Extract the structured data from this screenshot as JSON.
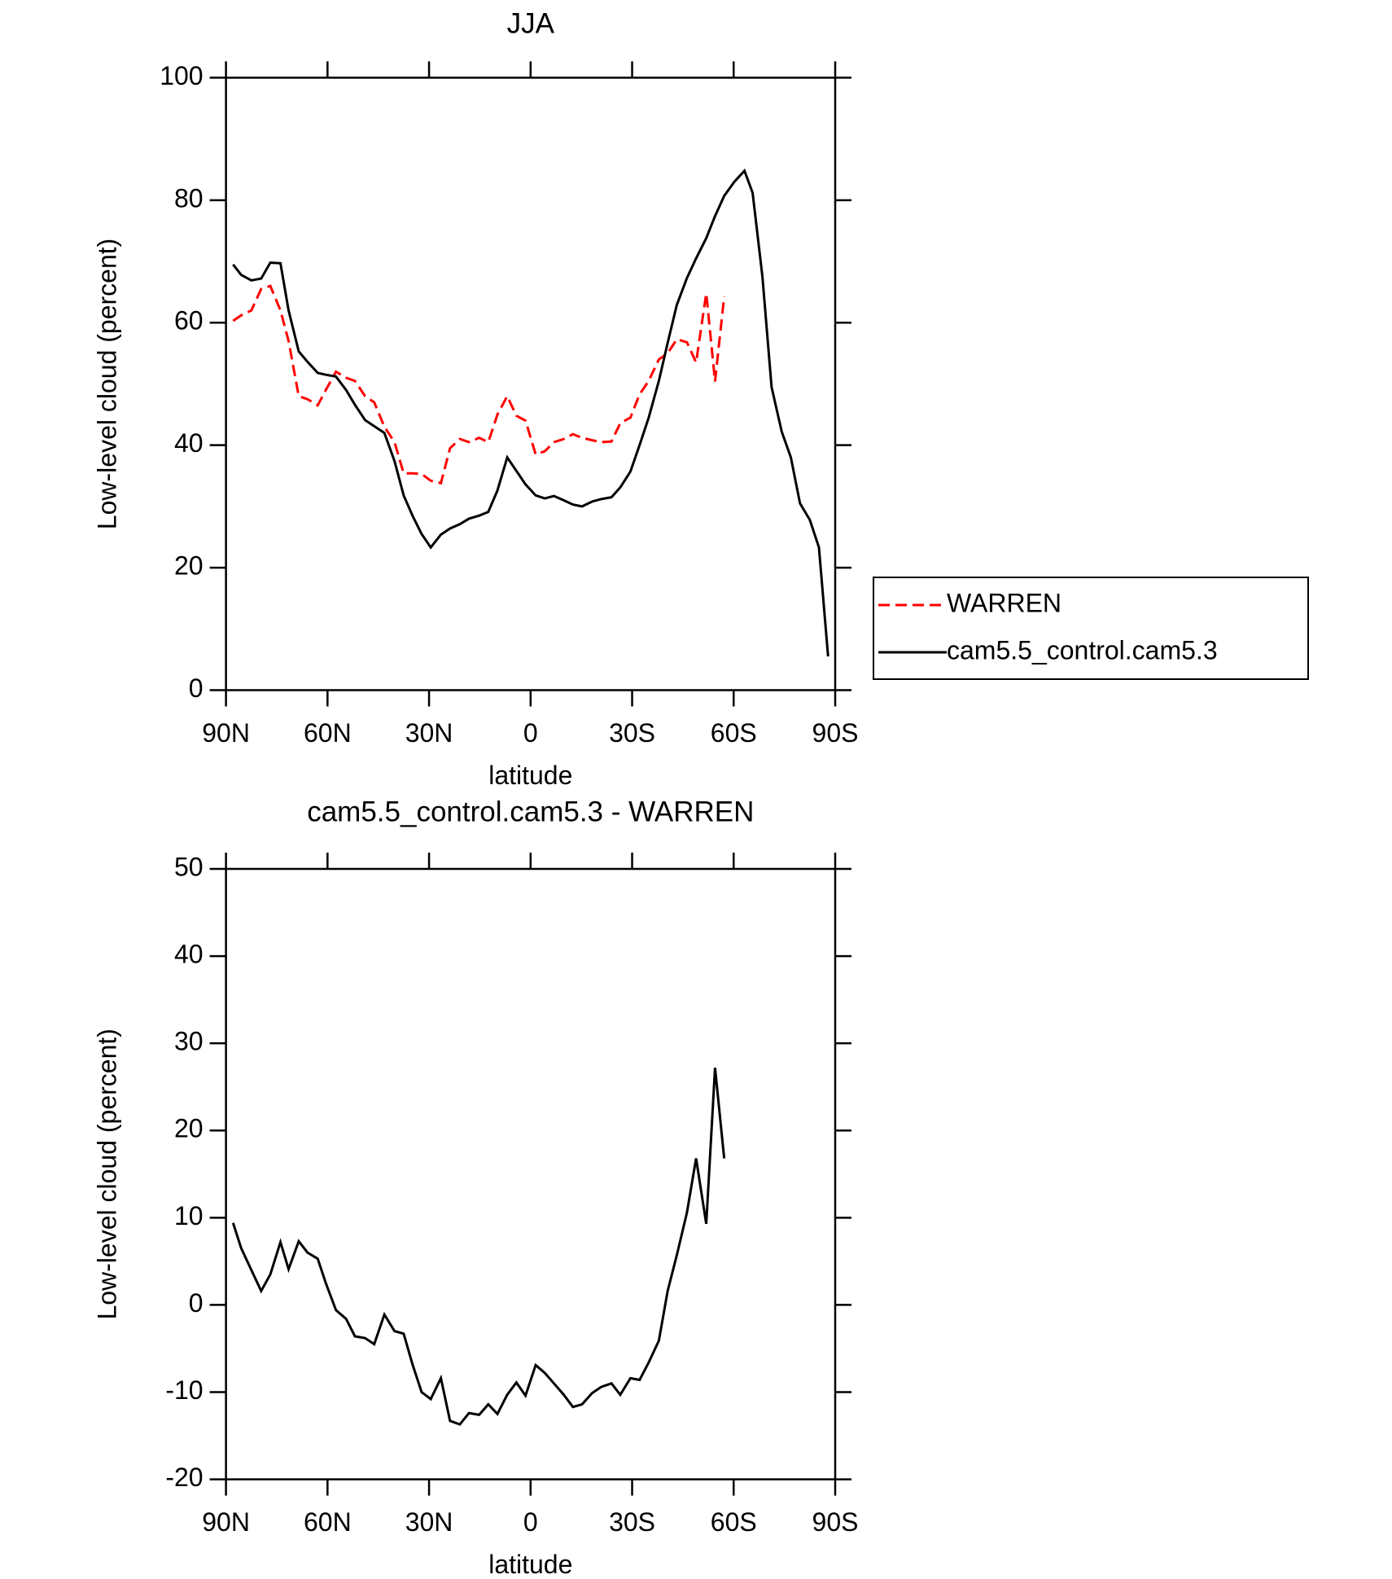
{
  "chart_data": [
    {
      "type": "line",
      "title": "JJA",
      "xlabel": "latitude",
      "ylabel": "Low-level cloud (percent)",
      "x": [
        87.9,
        85.5,
        82.5,
        79.6,
        76.9,
        73.9,
        71.5,
        68.5,
        65.9,
        62.9,
        60.5,
        57.5,
        54.5,
        51.9,
        48.9,
        46.2,
        43.2,
        40.2,
        37.5,
        34.9,
        32.2,
        29.5,
        26.5,
        23.8,
        20.9,
        18.2,
        15.2,
        12.5,
        9.8,
        6.9,
        4.2,
        1.5,
        -1.5,
        -4.2,
        -6.9,
        -9.8,
        -12.5,
        -15.2,
        -18.2,
        -20.9,
        -23.9,
        -26.5,
        -29.5,
        -32.2,
        -34.9,
        -37.9,
        -40.5,
        -43.2,
        -46.2,
        -48.9,
        -51.9,
        -54.5,
        -57.2,
        -60.2,
        -63.2,
        -65.6,
        -68.5,
        -71.2,
        -74.2,
        -76.9,
        -79.6,
        -82.5,
        -85.2,
        -87.9
      ],
      "series": [
        {
          "name": "WARREN",
          "color": "#ff0000",
          "style": "dashed",
          "values": [
            60.3,
            61.2,
            62,
            65.5,
            66,
            62,
            57,
            48,
            47.5,
            46.5,
            49,
            52,
            51,
            50.5,
            48,
            47,
            43,
            40.5,
            35.4,
            35.4,
            35.3,
            34.2,
            33.8,
            39.5,
            41,
            40.5,
            41.2,
            40.5,
            45,
            48,
            44.8,
            44,
            38.5,
            39,
            40.5,
            41,
            41.8,
            41.2,
            40.8,
            40.5,
            40.6,
            43.6,
            44.5,
            48.3,
            50.5,
            54,
            55,
            57.3,
            56.8,
            53.5,
            64.8,
            50.4,
            64.3,
            null,
            null,
            null,
            null,
            null,
            null,
            null,
            null,
            null,
            null,
            null
          ]
        },
        {
          "name": "cam5.5_control.cam5.3",
          "color": "#000000",
          "style": "solid",
          "values": [
            69.5,
            67.8,
            66.9,
            67.2,
            69.8,
            69.7,
            62,
            55.3,
            53.6,
            51.8,
            51.5,
            51.2,
            49,
            46.6,
            44.1,
            43.1,
            42,
            37.4,
            31.8,
            28.5,
            25.5,
            23.3,
            25.4,
            26.4,
            27.1,
            28,
            28.5,
            29.1,
            32.6,
            38,
            35.8,
            33.6,
            31.8,
            31.3,
            31.7,
            31,
            30.3,
            30,
            30.8,
            31.2,
            31.5,
            33.1,
            35.7,
            40,
            44.5,
            50.5,
            56.7,
            62.9,
            67.3,
            70.5,
            73.8,
            77.4,
            80.7,
            83,
            84.8,
            81.2,
            67.5,
            49.5,
            42.2,
            38,
            30.5,
            27.8,
            23.3,
            5.5
          ]
        }
      ],
      "xlim": [
        90,
        -90
      ],
      "xticks": [
        {
          "value": 90,
          "label": "90N"
        },
        {
          "value": 60,
          "label": "60N"
        },
        {
          "value": 30,
          "label": "30N"
        },
        0,
        {
          "value": -30,
          "label": "30S"
        },
        {
          "value": -60,
          "label": "60S"
        },
        {
          "value": -90,
          "label": "90S"
        }
      ],
      "ylim": [
        0,
        100
      ],
      "yticks": [
        0,
        20,
        40,
        60,
        80,
        100
      ],
      "legend": "right"
    },
    {
      "type": "line",
      "title": "cam5.5_control.cam5.3 - WARREN",
      "xlabel": "latitude",
      "ylabel": "Low-level cloud (percent)",
      "x": [
        87.9,
        85.5,
        82.5,
        79.6,
        76.9,
        73.9,
        71.5,
        68.5,
        65.9,
        62.9,
        60.5,
        57.5,
        54.5,
        51.9,
        48.9,
        46.2,
        43.2,
        40.2,
        37.5,
        34.9,
        32.2,
        29.5,
        26.5,
        23.8,
        20.9,
        18.2,
        15.2,
        12.5,
        9.8,
        6.9,
        4.2,
        1.5,
        -1.5,
        -4.2,
        -6.9,
        -9.8,
        -12.5,
        -15.2,
        -18.2,
        -20.9,
        -23.9,
        -26.5,
        -29.5,
        -32.2,
        -34.9,
        -37.9,
        -40.5,
        -43.2,
        -46.2,
        -48.9,
        -51.9,
        -54.5,
        -57.2
      ],
      "values": [
        9.4,
        6.5,
        4,
        1.6,
        3.5,
        7.2,
        4.1,
        7.3,
        6,
        5.3,
        2.5,
        -0.6,
        -1.6,
        -3.6,
        -3.8,
        -4.5,
        -1.1,
        -3,
        -3.3,
        -6.8,
        -10,
        -10.8,
        -8.4,
        -13.3,
        -13.7,
        -12.4,
        -12.6,
        -11.4,
        -12.5,
        -10.3,
        -8.9,
        -10.4,
        -6.9,
        -7.8,
        -9,
        -10.3,
        -11.7,
        -11.4,
        -10.1,
        -9.4,
        -9,
        -10.3,
        -8.4,
        -8.6,
        -6.6,
        -4.1,
        1.6,
        5.7,
        10.6,
        16.8,
        9.3,
        27.2,
        16.8
      ],
      "color": "#000000",
      "xlim": [
        90,
        -90
      ],
      "xticks": [
        {
          "value": 90,
          "label": "90N"
        },
        {
          "value": 60,
          "label": "60N"
        },
        {
          "value": 30,
          "label": "30N"
        },
        0,
        {
          "value": -30,
          "label": "30S"
        },
        {
          "value": -60,
          "label": "60S"
        },
        {
          "value": -90,
          "label": "90S"
        }
      ],
      "ylim": [
        -20,
        50
      ],
      "yticks": [
        -20,
        -10,
        0,
        10,
        20,
        30,
        40,
        50
      ]
    }
  ]
}
